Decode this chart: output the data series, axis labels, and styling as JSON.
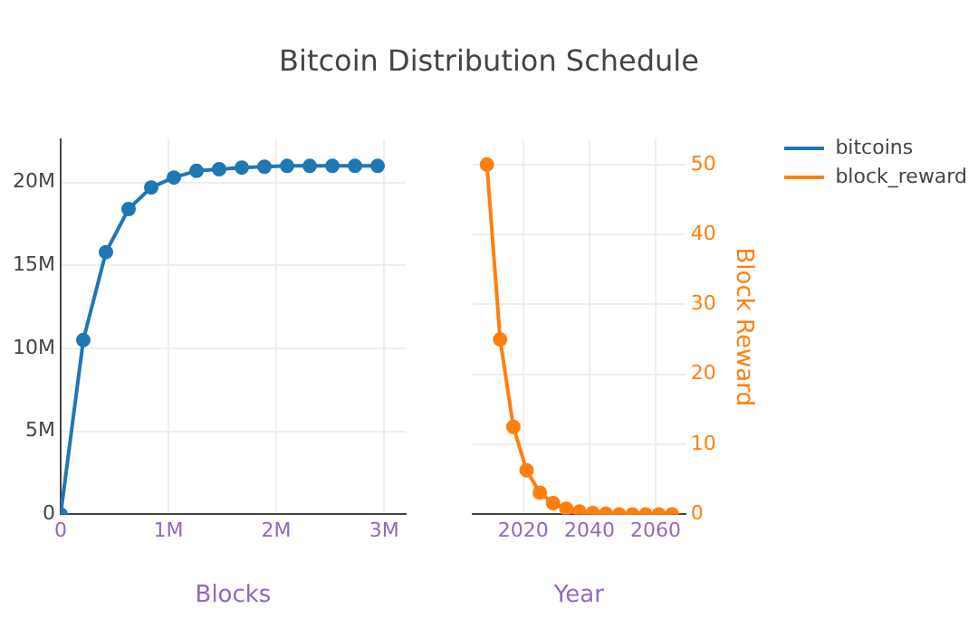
{
  "chart_data": [
    {
      "type": "line",
      "title": "Bitcoin Distribution Schedule",
      "xlabel": "Blocks",
      "x": [
        0,
        210000,
        420000,
        630000,
        840000,
        1050000,
        1260000,
        1470000,
        1680000,
        1890000,
        2100000,
        2310000,
        2520000,
        2730000,
        2940000
      ],
      "series": [
        {
          "name": "bitcoins",
          "color": "#1f77b4",
          "values": [
            0,
            10500000,
            15800000,
            18400000,
            19700000,
            20300000,
            20700000,
            20800000,
            20900000,
            20950000,
            21000000,
            21000000,
            21000000,
            21000000,
            21000000
          ]
        }
      ],
      "xlim": [
        0,
        3200000
      ],
      "xticks": [
        0,
        {
          "value": 1000000,
          "label": "1M"
        },
        {
          "value": 2000000,
          "label": "2M"
        },
        {
          "value": 3000000,
          "label": "3M"
        }
      ],
      "ylim": [
        0,
        22600000
      ],
      "yticks": [
        0,
        {
          "value": 5000000,
          "label": "5M"
        },
        {
          "value": 10000000,
          "label": "10M"
        },
        {
          "value": 15000000,
          "label": "15M"
        },
        {
          "value": 20000000,
          "label": "20M"
        }
      ],
      "grid": true,
      "marker": "circle"
    },
    {
      "type": "line",
      "xlabel": "Year",
      "y2label": "Block Reward",
      "x": [
        2009,
        2013,
        2017,
        2021,
        2025,
        2029,
        2033,
        2037,
        2041,
        2045,
        2049,
        2053,
        2057,
        2061,
        2065
      ],
      "series": [
        {
          "name": "block_reward",
          "color": "#ff7f0e",
          "axis": "y2",
          "values": [
            50,
            25,
            12.5,
            6.3,
            3.1,
            1.6,
            0.8,
            0.4,
            0.2,
            0.1,
            0,
            0,
            0,
            0,
            0
          ]
        }
      ],
      "xlim": [
        2004.7,
        2069
      ],
      "xticks": [
        2020,
        2040,
        2060
      ],
      "y2lim": [
        0,
        53.6
      ],
      "y2ticks": [
        0,
        10,
        20,
        30,
        40,
        50
      ],
      "grid": true,
      "marker": "circle",
      "legend": "top right"
    }
  ]
}
